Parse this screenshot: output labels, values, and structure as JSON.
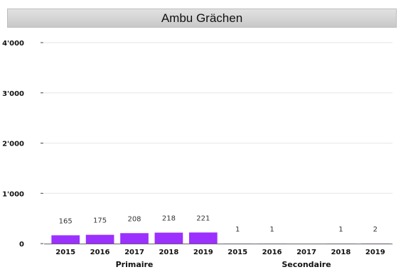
{
  "chart_data": {
    "type": "bar",
    "title": "Ambu Grächen",
    "xlabel": "",
    "ylabel": "",
    "ylim": [
      0,
      4000
    ],
    "yticks": [
      0,
      1000,
      2000,
      3000,
      4000
    ],
    "ytick_labels": [
      "0",
      "1'000",
      "2'000",
      "3'000",
      "4'000"
    ],
    "grid": true,
    "bar_color": "#9b30ff",
    "groups": [
      {
        "name": "Primaire",
        "categories": [
          "2015",
          "2016",
          "2017",
          "2018",
          "2019"
        ],
        "values": [
          165,
          175,
          208,
          218,
          221
        ]
      },
      {
        "name": "Secondaire",
        "categories": [
          "2015",
          "2016",
          "2017",
          "2018",
          "2019"
        ],
        "values": [
          1,
          1,
          null,
          1,
          2
        ]
      }
    ]
  }
}
